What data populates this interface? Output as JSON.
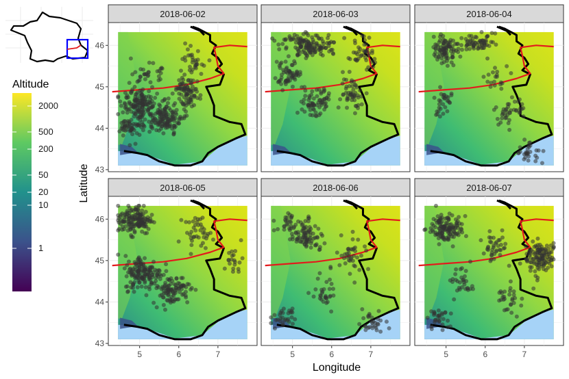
{
  "colors": {
    "altitude_low": "#440154",
    "altitude_mid": "#21918c",
    "altitude_high": "#fde725",
    "sea": "#a6d3f7",
    "border": "#000000",
    "highway": "#e31a1c",
    "points": "#333333",
    "inset_box": "#0000ff",
    "strip_fill": "#d9d9d9"
  },
  "icons": {
    "inset": "france-outline-map"
  },
  "legend": {
    "title": "Altitude",
    "breaks": [
      {
        "label": "2000",
        "value": 2000
      },
      {
        "label": "500",
        "value": 500
      },
      {
        "label": "200",
        "value": 200
      },
      {
        "label": "50",
        "value": 50
      },
      {
        "label": "20",
        "value": 20
      },
      {
        "label": "10",
        "value": 10
      },
      {
        "label": "1",
        "value": 1
      }
    ]
  },
  "axes": {
    "xlabel": "Longitude",
    "ylabel": "Latitude",
    "x_ticks": [
      {
        "label": "5",
        "value": 5
      },
      {
        "label": "6",
        "value": 6
      },
      {
        "label": "7",
        "value": 7
      }
    ],
    "y_ticks": [
      {
        "label": "43",
        "value": 43
      },
      {
        "label": "44",
        "value": 44
      },
      {
        "label": "45",
        "value": 45
      },
      {
        "label": "46",
        "value": 46
      }
    ],
    "xlim": [
      4.2,
      8.0
    ],
    "ylim": [
      42.95,
      46.55
    ]
  },
  "panels": [
    {
      "date": "2018-06-02",
      "clusters": [
        [
          5.0,
          44.6,
          0.35,
          0.35,
          150
        ],
        [
          5.6,
          44.2,
          0.4,
          0.3,
          140
        ],
        [
          6.2,
          44.8,
          0.3,
          0.4,
          90
        ],
        [
          4.8,
          44.0,
          0.25,
          0.25,
          50
        ],
        [
          6.4,
          45.6,
          0.25,
          0.25,
          30
        ],
        [
          5.2,
          45.3,
          0.3,
          0.2,
          30
        ]
      ]
    },
    {
      "date": "2018-06-03",
      "clusters": [
        [
          5.4,
          46.0,
          0.6,
          0.25,
          140
        ],
        [
          4.9,
          45.3,
          0.3,
          0.3,
          60
        ],
        [
          5.6,
          44.6,
          0.4,
          0.3,
          70
        ],
        [
          6.5,
          44.9,
          0.25,
          0.35,
          50
        ],
        [
          6.8,
          45.8,
          0.3,
          0.3,
          40
        ]
      ]
    },
    {
      "date": "2018-06-04",
      "clusters": [
        [
          5.0,
          45.9,
          0.3,
          0.25,
          90
        ],
        [
          5.8,
          46.1,
          0.35,
          0.2,
          60
        ],
        [
          4.9,
          44.6,
          0.2,
          0.3,
          30
        ],
        [
          6.6,
          44.4,
          0.3,
          0.3,
          40
        ],
        [
          7.1,
          43.4,
          0.3,
          0.2,
          30
        ],
        [
          6.3,
          45.2,
          0.3,
          0.3,
          20
        ]
      ]
    },
    {
      "date": "2018-06-05",
      "clusters": [
        [
          4.9,
          46.0,
          0.35,
          0.3,
          150
        ],
        [
          5.1,
          44.7,
          0.4,
          0.35,
          150
        ],
        [
          5.8,
          44.3,
          0.4,
          0.3,
          100
        ],
        [
          6.5,
          45.7,
          0.3,
          0.3,
          40
        ],
        [
          7.4,
          45.0,
          0.2,
          0.3,
          20
        ]
      ]
    },
    {
      "date": "2018-06-06",
      "clusters": [
        [
          5.4,
          45.6,
          0.3,
          0.3,
          80
        ],
        [
          4.9,
          45.9,
          0.25,
          0.2,
          30
        ],
        [
          6.5,
          45.1,
          0.3,
          0.4,
          40
        ],
        [
          5.8,
          44.2,
          0.3,
          0.3,
          30
        ],
        [
          4.8,
          43.6,
          0.3,
          0.2,
          30
        ],
        [
          7.0,
          43.5,
          0.3,
          0.2,
          30
        ]
      ]
    },
    {
      "date": "2018-06-07",
      "clusters": [
        [
          5.0,
          45.8,
          0.35,
          0.3,
          130
        ],
        [
          7.4,
          45.1,
          0.3,
          0.35,
          120
        ],
        [
          6.2,
          45.3,
          0.3,
          0.3,
          40
        ],
        [
          5.4,
          44.5,
          0.3,
          0.3,
          30
        ],
        [
          6.6,
          44.1,
          0.3,
          0.3,
          30
        ],
        [
          4.8,
          43.6,
          0.25,
          0.2,
          30
        ]
      ]
    }
  ]
}
